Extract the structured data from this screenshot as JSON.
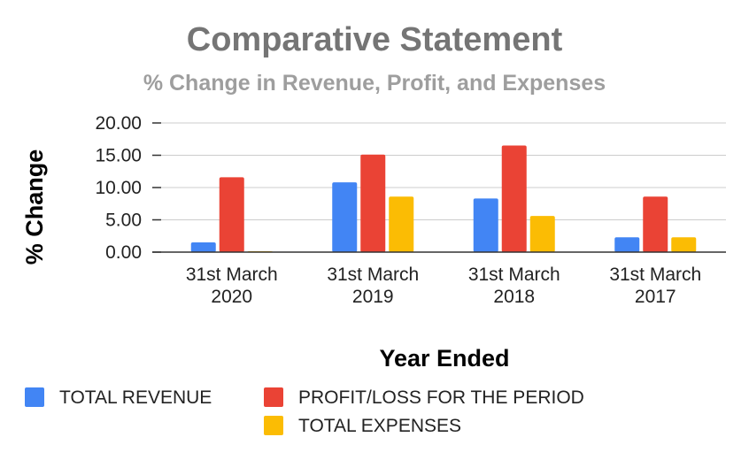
{
  "chart_data": {
    "type": "bar",
    "title": "Comparative Statement",
    "subtitle": "% Change in Revenue, Profit, and Expenses",
    "xlabel": "Year Ended",
    "ylabel": "% Change",
    "ylim": [
      0,
      20
    ],
    "yticks": [
      "0.00",
      "5.00",
      "10.00",
      "15.00",
      "20.00"
    ],
    "categories": [
      [
        "31st March",
        "2020"
      ],
      [
        "31st March",
        "2019"
      ],
      [
        "31st March",
        "2018"
      ],
      [
        "31st March",
        "2017"
      ]
    ],
    "series": [
      {
        "name": "TOTAL REVENUE",
        "color": "#4285f4",
        "values": [
          1.5,
          10.8,
          8.3,
          2.3
        ]
      },
      {
        "name": "PROFIT/LOSS FOR THE PERIOD",
        "color": "#ea4335",
        "values": [
          11.6,
          15.1,
          16.5,
          8.6
        ]
      },
      {
        "name": "TOTAL EXPENSES",
        "color": "#fbbc04",
        "values": [
          0.1,
          8.6,
          5.6,
          2.3
        ]
      }
    ],
    "grid": true,
    "legend_position": "bottom"
  }
}
